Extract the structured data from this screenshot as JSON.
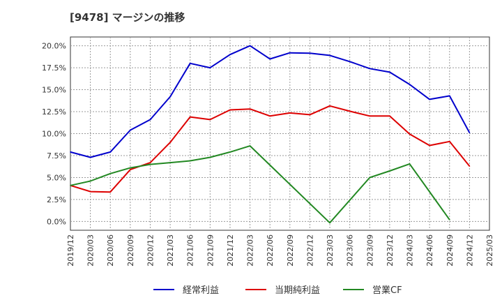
{
  "chart_data": {
    "type": "line",
    "title": "[9478]  マージンの推移",
    "xlabel": "",
    "ylabel": "",
    "x": [
      "2019/12",
      "2020/03",
      "2020/06",
      "2020/09",
      "2020/12",
      "2021/03",
      "2021/06",
      "2021/09",
      "2021/12",
      "2022/03",
      "2022/06",
      "2022/09",
      "2022/12",
      "2023/03",
      "2023/06",
      "2023/09",
      "2023/12",
      "2024/03",
      "2024/06",
      "2024/09",
      "2024/12",
      "2025/03"
    ],
    "yticks": [
      "0.0%",
      "2.5%",
      "5.0%",
      "7.5%",
      "10.0%",
      "12.5%",
      "15.0%",
      "17.5%",
      "20.0%"
    ],
    "ylim": [
      -1.0,
      21.0
    ],
    "grid": true,
    "legend": "bottom",
    "series": [
      {
        "name": "経常利益",
        "color": "#0000cc",
        "values": [
          7.9,
          7.3,
          7.9,
          10.4,
          11.6,
          14.2,
          18.0,
          17.5,
          19.0,
          20.0,
          18.5,
          19.2,
          19.15,
          18.9,
          18.2,
          17.4,
          17.0,
          15.6,
          13.9,
          14.3,
          10.1,
          null
        ]
      },
      {
        "name": "当期純利益",
        "color": "#dd0000",
        "values": [
          4.1,
          3.4,
          3.35,
          5.9,
          6.7,
          9.0,
          11.9,
          11.6,
          12.7,
          12.8,
          12.0,
          12.35,
          12.15,
          13.15,
          12.55,
          12.0,
          12.0,
          9.95,
          8.65,
          9.1,
          6.3,
          null
        ]
      },
      {
        "name": "営業CF",
        "color": "#228822",
        "values": [
          4.1,
          4.6,
          5.45,
          6.1,
          6.5,
          6.7,
          6.9,
          7.3,
          7.9,
          8.6,
          null,
          null,
          null,
          -0.15,
          null,
          5.0,
          5.75,
          6.55,
          null,
          0.2,
          null,
          null
        ]
      }
    ]
  }
}
